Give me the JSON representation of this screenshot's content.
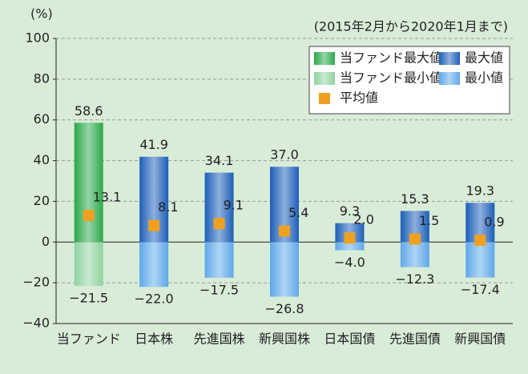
{
  "chart_data": {
    "type": "floating-bar",
    "unit_label": "(%)",
    "note": "(2015年2月から2020年1月まで)",
    "categories": [
      "当ファンド",
      "日本株",
      "先進国株",
      "新興国株",
      "日本国債",
      "先進国債",
      "新興国債"
    ],
    "series": [
      {
        "name": "最大値",
        "colors": [
          "#2aa84a",
          "#1d5fb8",
          "#1d5fb8",
          "#1d5fb8",
          "#1d5fb8",
          "#1d5fb8",
          "#1d5fb8"
        ],
        "values": [
          58.6,
          41.9,
          34.1,
          37.0,
          9.3,
          15.3,
          19.3
        ],
        "value_labels": [
          "58.6",
          "41.9",
          "34.1",
          "37.0",
          "9.3",
          "15.3",
          "19.3"
        ]
      },
      {
        "name": "最小値",
        "colors": [
          "#8fd3a0",
          "#5fa8e8",
          "#5fa8e8",
          "#5fa8e8",
          "#5fa8e8",
          "#5fa8e8",
          "#5fa8e8"
        ],
        "values": [
          -21.5,
          -22.0,
          -17.5,
          -26.8,
          -4.0,
          -12.3,
          -17.4
        ],
        "value_labels": [
          "−21.5",
          "−22.0",
          "−17.5",
          "−26.8",
          "−4.0",
          "−12.3",
          "−17.4"
        ]
      },
      {
        "name": "平均値",
        "color": "#f0a020",
        "values": [
          13.1,
          8.1,
          9.1,
          5.4,
          2.0,
          1.5,
          0.9
        ],
        "value_labels": [
          "13.1",
          "8.1",
          "9.1",
          "5.4",
          "2.0",
          "1.5",
          "0.9"
        ]
      }
    ],
    "legend": [
      {
        "name": "当ファンド最大値",
        "color": "#2aa84a"
      },
      {
        "name": "最大値",
        "color": "#1d5fb8"
      },
      {
        "name": "当ファンド最小値",
        "color": "#8fd3a0"
      },
      {
        "name": "最小値",
        "color": "#5fa8e8"
      },
      {
        "name": "平均値",
        "color": "#f0a020"
      }
    ],
    "ylim": [
      -40,
      100
    ],
    "yticks": [
      {
        "value": -40,
        "label": "−40"
      },
      {
        "value": -20,
        "label": "−20"
      },
      0,
      20,
      40,
      60,
      80,
      100
    ],
    "grid": true
  }
}
